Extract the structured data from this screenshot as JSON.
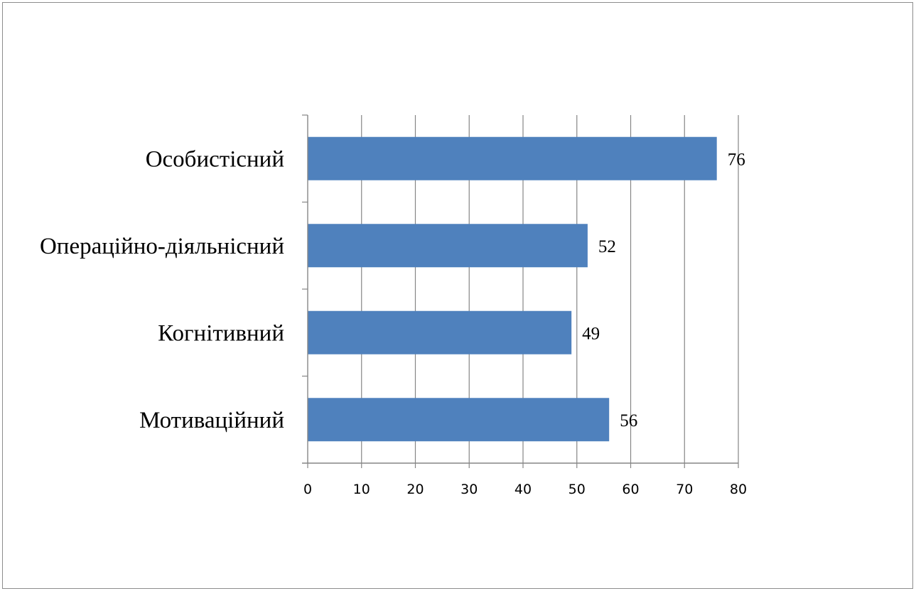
{
  "chart_data": {
    "type": "bar",
    "orientation": "horizontal",
    "categories": [
      "Особистісний",
      "Операційно-діяльнісний",
      "Когнітивний",
      "Мотиваційний"
    ],
    "values": [
      76,
      52,
      49,
      56
    ],
    "xlim": [
      0,
      80
    ],
    "x_ticks": [
      "0",
      "10",
      "20",
      "30",
      "40",
      "50",
      "60",
      "70",
      "80"
    ],
    "grid": "vertical",
    "legend": "none",
    "bar_color": "#4f81bd",
    "grid_color": "#868686"
  }
}
